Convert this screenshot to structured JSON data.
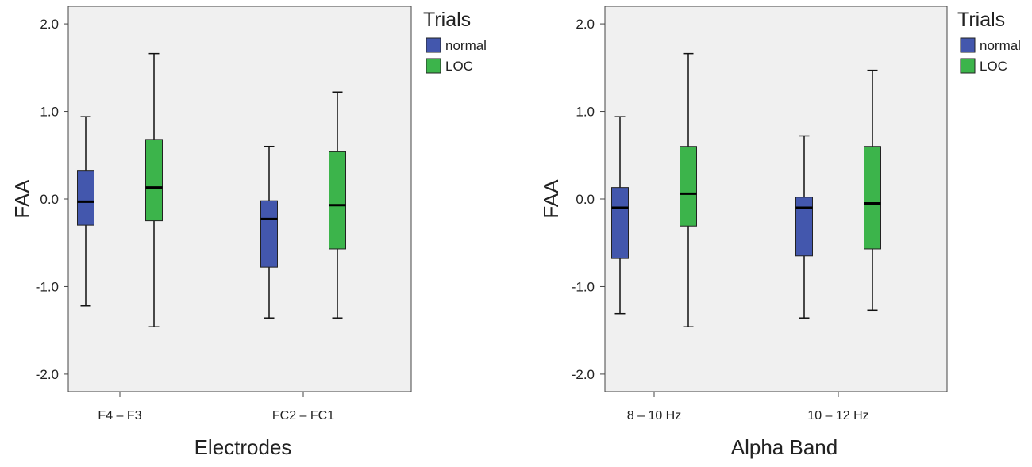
{
  "chart_data": [
    {
      "type": "boxplot",
      "ylabel": "FAA",
      "xlabel": "Electrodes",
      "ylim": [
        -2.2,
        2.2
      ],
      "yticks": [
        -2.0,
        -1.0,
        0.0,
        1.0,
        2.0
      ],
      "ytick_labels": [
        "-2.0",
        "-1.0",
        "0.0",
        "1.0",
        "2.0"
      ],
      "categories": [
        "F4 – F3",
        "FC2 – FC1"
      ],
      "legend": {
        "title": "Trials",
        "position": "right",
        "entries": [
          "normal",
          "LOC"
        ]
      },
      "series": [
        {
          "name": "normal",
          "color": "#4357ad",
          "boxes": [
            {
              "min": -1.22,
              "q1": -0.3,
              "median": -0.03,
              "q3": 0.32,
              "max": 0.94
            },
            {
              "min": -1.36,
              "q1": -0.78,
              "median": -0.23,
              "q3": -0.02,
              "max": 0.6
            }
          ]
        },
        {
          "name": "LOC",
          "color": "#3cb44b",
          "boxes": [
            {
              "min": -1.46,
              "q1": -0.25,
              "median": 0.13,
              "q3": 0.68,
              "max": 1.66
            },
            {
              "min": -1.36,
              "q1": -0.57,
              "median": -0.07,
              "q3": 0.54,
              "max": 1.22
            }
          ]
        }
      ]
    },
    {
      "type": "boxplot",
      "ylabel": "FAA",
      "xlabel": "Alpha Band",
      "ylim": [
        -2.2,
        2.2
      ],
      "yticks": [
        -2.0,
        -1.0,
        0.0,
        1.0,
        2.0
      ],
      "ytick_labels": [
        "-2.0",
        "-1.0",
        "0.0",
        "1.0",
        "2.0"
      ],
      "categories": [
        "8 – 10 Hz",
        "10 – 12 Hz"
      ],
      "legend": {
        "title": "Trials",
        "position": "right",
        "entries": [
          "normal",
          "LOC"
        ]
      },
      "series": [
        {
          "name": "normal",
          "color": "#4357ad",
          "boxes": [
            {
              "min": -1.31,
              "q1": -0.68,
              "median": -0.1,
              "q3": 0.13,
              "max": 0.94
            },
            {
              "min": -1.36,
              "q1": -0.65,
              "median": -0.1,
              "q3": 0.02,
              "max": 0.72
            }
          ]
        },
        {
          "name": "LOC",
          "color": "#3cb44b",
          "boxes": [
            {
              "min": -1.46,
              "q1": -0.31,
              "median": 0.06,
              "q3": 0.6,
              "max": 1.66
            },
            {
              "min": -1.27,
              "q1": -0.57,
              "median": -0.05,
              "q3": 0.6,
              "max": 1.47
            }
          ]
        }
      ]
    }
  ]
}
